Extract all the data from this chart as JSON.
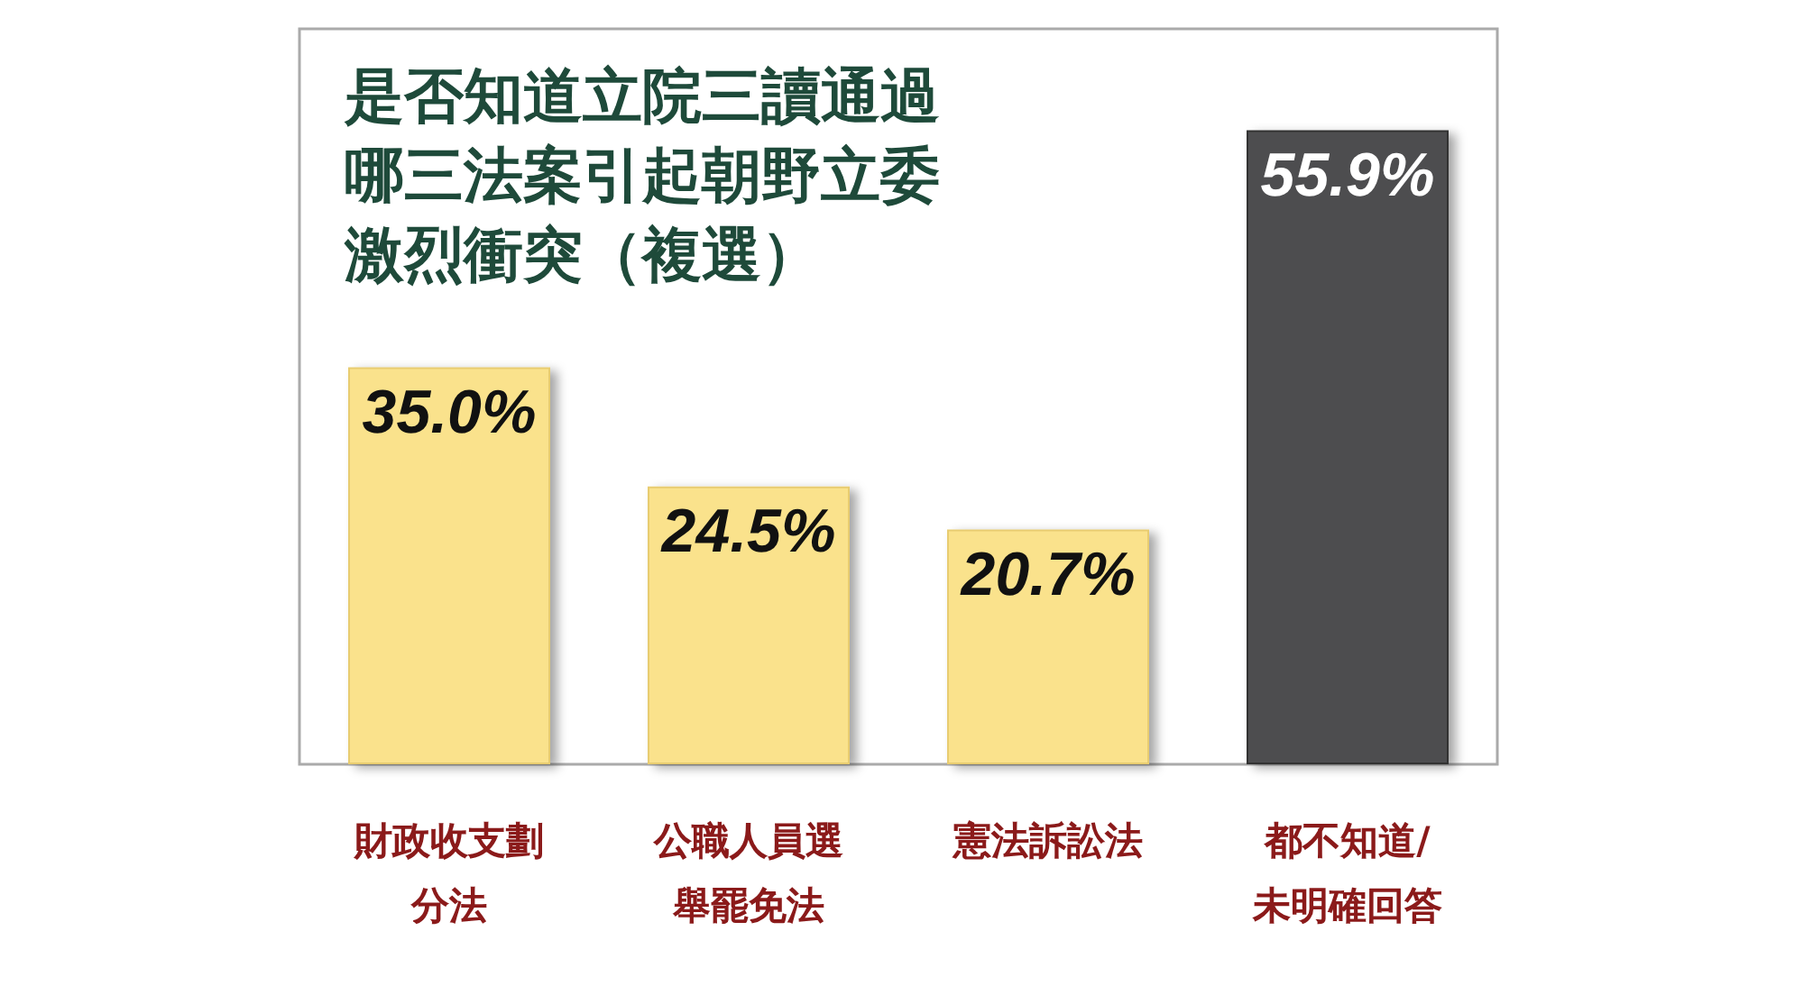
{
  "chart_data": {
    "type": "bar",
    "title": "是否知道立院三讀通過哪三法案引起朝野立委激烈衝突（複選）",
    "categories": [
      "財政收支劃分法",
      "公職人員選舉罷免法",
      "憲法訴訟法",
      "都不知道/未明確回答"
    ],
    "values": [
      35.0,
      24.5,
      20.7,
      55.9
    ],
    "colors": [
      "#fae28c",
      "#fae28c",
      "#fae28c",
      "#4d4d4f"
    ],
    "value_labels": [
      "35.0%",
      "24.5%",
      "20.7%",
      "55.9%"
    ]
  }
}
